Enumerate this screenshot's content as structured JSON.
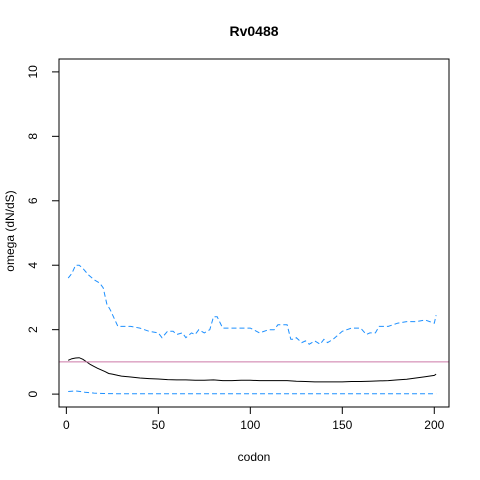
{
  "chart_data": {
    "type": "line",
    "title": "Rv0488",
    "xlabel": "codon",
    "ylabel": "omega (dN/dS)",
    "xlim": [
      -4,
      208
    ],
    "ylim": [
      -0.4,
      10.4
    ],
    "x_ticks": [
      0,
      50,
      100,
      150,
      200
    ],
    "y_ticks": [
      0,
      2,
      4,
      6,
      8,
      10
    ],
    "grid": false,
    "reference_line": {
      "y": 1.0,
      "color": "#cc79a7"
    },
    "series": [
      {
        "style": "solid",
        "color": "#000000",
        "x": [
          1,
          3,
          5,
          7,
          9,
          11,
          13,
          15,
          17,
          19,
          21,
          23,
          25,
          28,
          30,
          35,
          40,
          45,
          50,
          55,
          60,
          65,
          70,
          75,
          80,
          85,
          90,
          95,
          100,
          105,
          110,
          115,
          120,
          125,
          130,
          135,
          140,
          145,
          150,
          155,
          160,
          165,
          170,
          175,
          180,
          185,
          190,
          195,
          200,
          201
        ],
        "y": [
          1.05,
          1.1,
          1.12,
          1.13,
          1.08,
          1.0,
          0.92,
          0.86,
          0.8,
          0.75,
          0.7,
          0.64,
          0.62,
          0.58,
          0.56,
          0.53,
          0.5,
          0.48,
          0.47,
          0.45,
          0.44,
          0.44,
          0.43,
          0.43,
          0.44,
          0.42,
          0.42,
          0.43,
          0.43,
          0.42,
          0.42,
          0.42,
          0.42,
          0.4,
          0.39,
          0.38,
          0.38,
          0.38,
          0.38,
          0.39,
          0.39,
          0.4,
          0.41,
          0.42,
          0.44,
          0.46,
          0.5,
          0.54,
          0.58,
          0.62
        ]
      },
      {
        "style": "dashed",
        "color": "#1e90ff",
        "x": [
          1,
          3,
          5,
          7,
          9,
          12,
          15,
          18,
          20,
          22,
          24,
          26,
          28,
          30,
          35,
          40,
          45,
          50,
          52,
          55,
          58,
          60,
          63,
          65,
          68,
          70,
          72,
          75,
          78,
          80,
          82,
          85,
          90,
          95,
          100,
          105,
          110,
          113,
          115,
          118,
          120,
          122,
          124,
          125,
          128,
          130,
          132,
          135,
          138,
          140,
          142,
          145,
          150,
          155,
          160,
          163,
          165,
          168,
          170,
          175,
          180,
          185,
          190,
          195,
          200,
          201
        ],
        "y": [
          3.6,
          3.75,
          4.0,
          4.0,
          3.9,
          3.7,
          3.55,
          3.45,
          3.3,
          2.8,
          2.6,
          2.35,
          2.1,
          2.1,
          2.1,
          2.05,
          1.95,
          1.9,
          1.75,
          1.95,
          1.95,
          1.85,
          1.9,
          1.75,
          1.9,
          1.85,
          2.0,
          1.9,
          2.0,
          2.4,
          2.4,
          2.05,
          2.05,
          2.05,
          2.05,
          1.9,
          2.0,
          2.0,
          2.15,
          2.15,
          2.15,
          1.7,
          1.7,
          1.75,
          1.6,
          1.65,
          1.55,
          1.65,
          1.55,
          1.7,
          1.6,
          1.7,
          1.95,
          2.05,
          2.05,
          1.85,
          1.9,
          1.9,
          2.1,
          2.1,
          2.2,
          2.25,
          2.25,
          2.3,
          2.2,
          2.45
        ]
      },
      {
        "style": "dashed",
        "color": "#1e90ff",
        "x": [
          1,
          5,
          10,
          15,
          20,
          30,
          50,
          100,
          150,
          200,
          201
        ],
        "y": [
          0.08,
          0.1,
          0.06,
          0.03,
          0.02,
          0.01,
          0.01,
          0.01,
          0.01,
          0.01,
          0.01
        ]
      }
    ]
  }
}
